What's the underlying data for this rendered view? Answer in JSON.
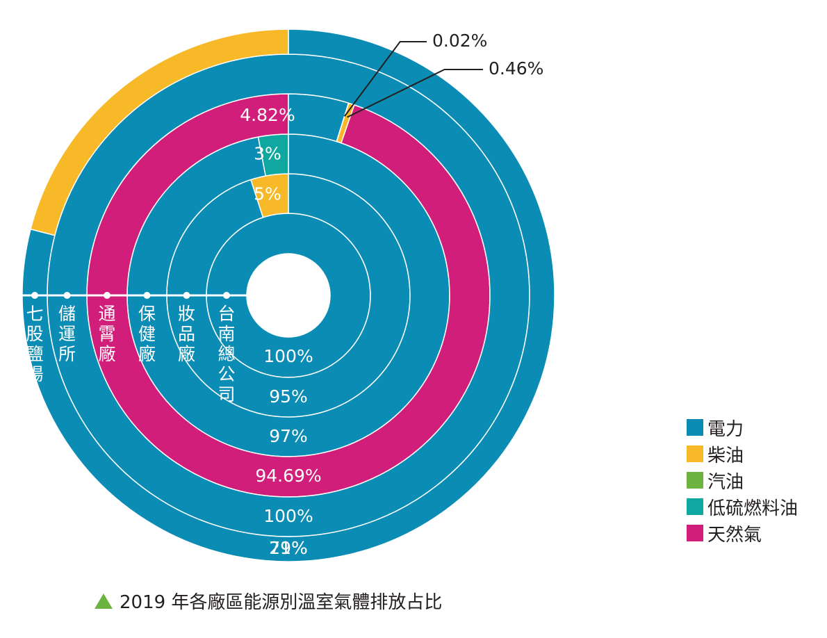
{
  "chart_data": {
    "type": "pie",
    "subtype": "concentric-rings",
    "caption": "2019 年各廠區能源別溫室氣體排放占比",
    "legend": [
      {
        "name": "電力",
        "color": "#0b8cb5"
      },
      {
        "name": "柴油",
        "color": "#f7b928"
      },
      {
        "name": "汽油",
        "color": "#6db33f"
      },
      {
        "name": "低硫燃料油",
        "color": "#0fa8a0"
      },
      {
        "name": "天然氣",
        "color": "#d01e7a"
      }
    ],
    "legend_position": "bottom-right",
    "rings": [
      {
        "site": "台南總公司",
        "slices": [
          {
            "energy": "電力",
            "value": 100,
            "label": "100%"
          }
        ]
      },
      {
        "site": "妝品廠",
        "slices": [
          {
            "energy": "電力",
            "value": 95,
            "label": "95%"
          },
          {
            "energy": "柴油",
            "value": 5,
            "label": "5%"
          }
        ]
      },
      {
        "site": "保健廠",
        "slices": [
          {
            "energy": "電力",
            "value": 97,
            "label": "97%"
          },
          {
            "energy": "低硫燃料油",
            "value": 3,
            "label": "3%"
          }
        ]
      },
      {
        "site": "通霄廠",
        "slices": [
          {
            "energy": "天然氣",
            "value": 94.69,
            "label": "94.69%"
          },
          {
            "energy": "汽油",
            "value": 0.02,
            "label": "0.02%"
          },
          {
            "energy": "柴油",
            "value": 0.46,
            "label": "0.46%"
          },
          {
            "energy": "電力",
            "value": 4.82,
            "label": "4.82%"
          }
        ]
      },
      {
        "site": "儲運所",
        "slices": [
          {
            "energy": "電力",
            "value": 100,
            "label": "100%"
          }
        ]
      },
      {
        "site": "七股鹽場",
        "slices": [
          {
            "energy": "電力",
            "value": 79,
            "label": "79%"
          },
          {
            "energy": "柴油",
            "value": 21,
            "label": "21%"
          }
        ]
      }
    ]
  }
}
